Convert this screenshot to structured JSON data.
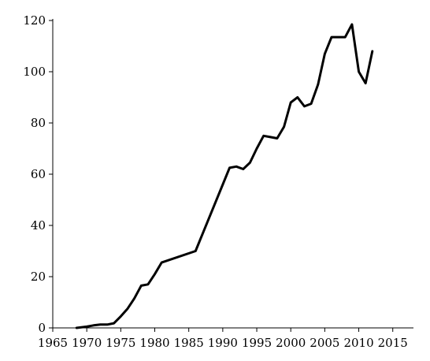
{
  "chart_data": {
    "type": "line",
    "title": "",
    "xlabel": "",
    "ylabel": "",
    "xlim": [
      1965,
      2017
    ],
    "ylim": [
      0,
      120
    ],
    "xticks": [
      1965,
      1970,
      1975,
      1980,
      1985,
      1990,
      1995,
      2000,
      2005,
      2010,
      2015
    ],
    "yticks": [
      0,
      20,
      40,
      60,
      80,
      100,
      120
    ],
    "grid": false,
    "legend": "none",
    "series": [
      {
        "color": "#000000",
        "x": [
          1968.5,
          1970,
          1971,
          1972,
          1973,
          1974,
          1975,
          1976,
          1977,
          1978,
          1979,
          1980,
          1981,
          1986,
          1990,
          1991,
          1992,
          1993,
          1994,
          1995,
          1996,
          1997,
          1998,
          1999,
          2000,
          2001,
          2002,
          2003,
          2004,
          2005,
          2006,
          2007,
          2008,
          2009,
          2010,
          2011,
          2012
        ],
        "y": [
          0,
          0.5,
          1,
          1.3,
          1.3,
          1.8,
          4.5,
          7.5,
          11.5,
          16.5,
          17,
          21,
          25.5,
          30,
          56,
          62.5,
          63,
          62,
          64.5,
          70,
          75,
          74.5,
          74,
          78.5,
          88,
          90,
          86.5,
          87.5,
          95,
          107,
          113.5,
          113.5,
          113.5,
          118.5,
          100,
          95.5,
          108
        ]
      }
    ]
  }
}
